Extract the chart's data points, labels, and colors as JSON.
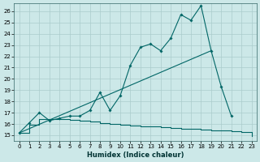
{
  "xlabel": "Humidex (Indice chaleur)",
  "bg_color": "#cce8e8",
  "grid_color": "#aacccc",
  "line_color": "#006666",
  "xlim": [
    -0.5,
    23.5
  ],
  "ylim": [
    14.5,
    26.7
  ],
  "s1_x": [
    0,
    1,
    2,
    3,
    4,
    5,
    6,
    7,
    8,
    9,
    10,
    11,
    12,
    13,
    14,
    15,
    16,
    17,
    18,
    19,
    20,
    21,
    22,
    23
  ],
  "s1_y": [
    15.2,
    16.1,
    17.0,
    16.3,
    16.5,
    16.7,
    16.7,
    17.2,
    18.8,
    17.2,
    18.5,
    21.2,
    22.8,
    23.1,
    22.5,
    23.6,
    25.7,
    25.2,
    26.5,
    22.5,
    19.3,
    16.7,
    null,
    null
  ],
  "s2_x": [
    0,
    1,
    2,
    3,
    4,
    5,
    6,
    7,
    8,
    9,
    10,
    11,
    12,
    13,
    14,
    15,
    16,
    17,
    18,
    19,
    20,
    21,
    22,
    23
  ],
  "s2_y": [
    15.2,
    15.7,
    16.2,
    16.65,
    17.1,
    17.55,
    17.9,
    18.3,
    18.7,
    19.1,
    19.5,
    19.95,
    20.4,
    20.85,
    21.3,
    21.75,
    22.2,
    22.65,
    23.1,
    22.5,
    null,
    null,
    null,
    null
  ],
  "s3_x": [
    0,
    1,
    2,
    3,
    4,
    5,
    6,
    7,
    8,
    9,
    10,
    11,
    12,
    13,
    14,
    15,
    16,
    17,
    18,
    19,
    20,
    21,
    22,
    23
  ],
  "s3_y": [
    15.2,
    15.9,
    16.45,
    16.4,
    16.4,
    16.35,
    16.3,
    16.2,
    16.1,
    16.0,
    15.9,
    15.85,
    15.8,
    15.75,
    15.7,
    15.65,
    15.6,
    15.55,
    15.5,
    15.45,
    15.4,
    15.35,
    15.25,
    14.95
  ]
}
